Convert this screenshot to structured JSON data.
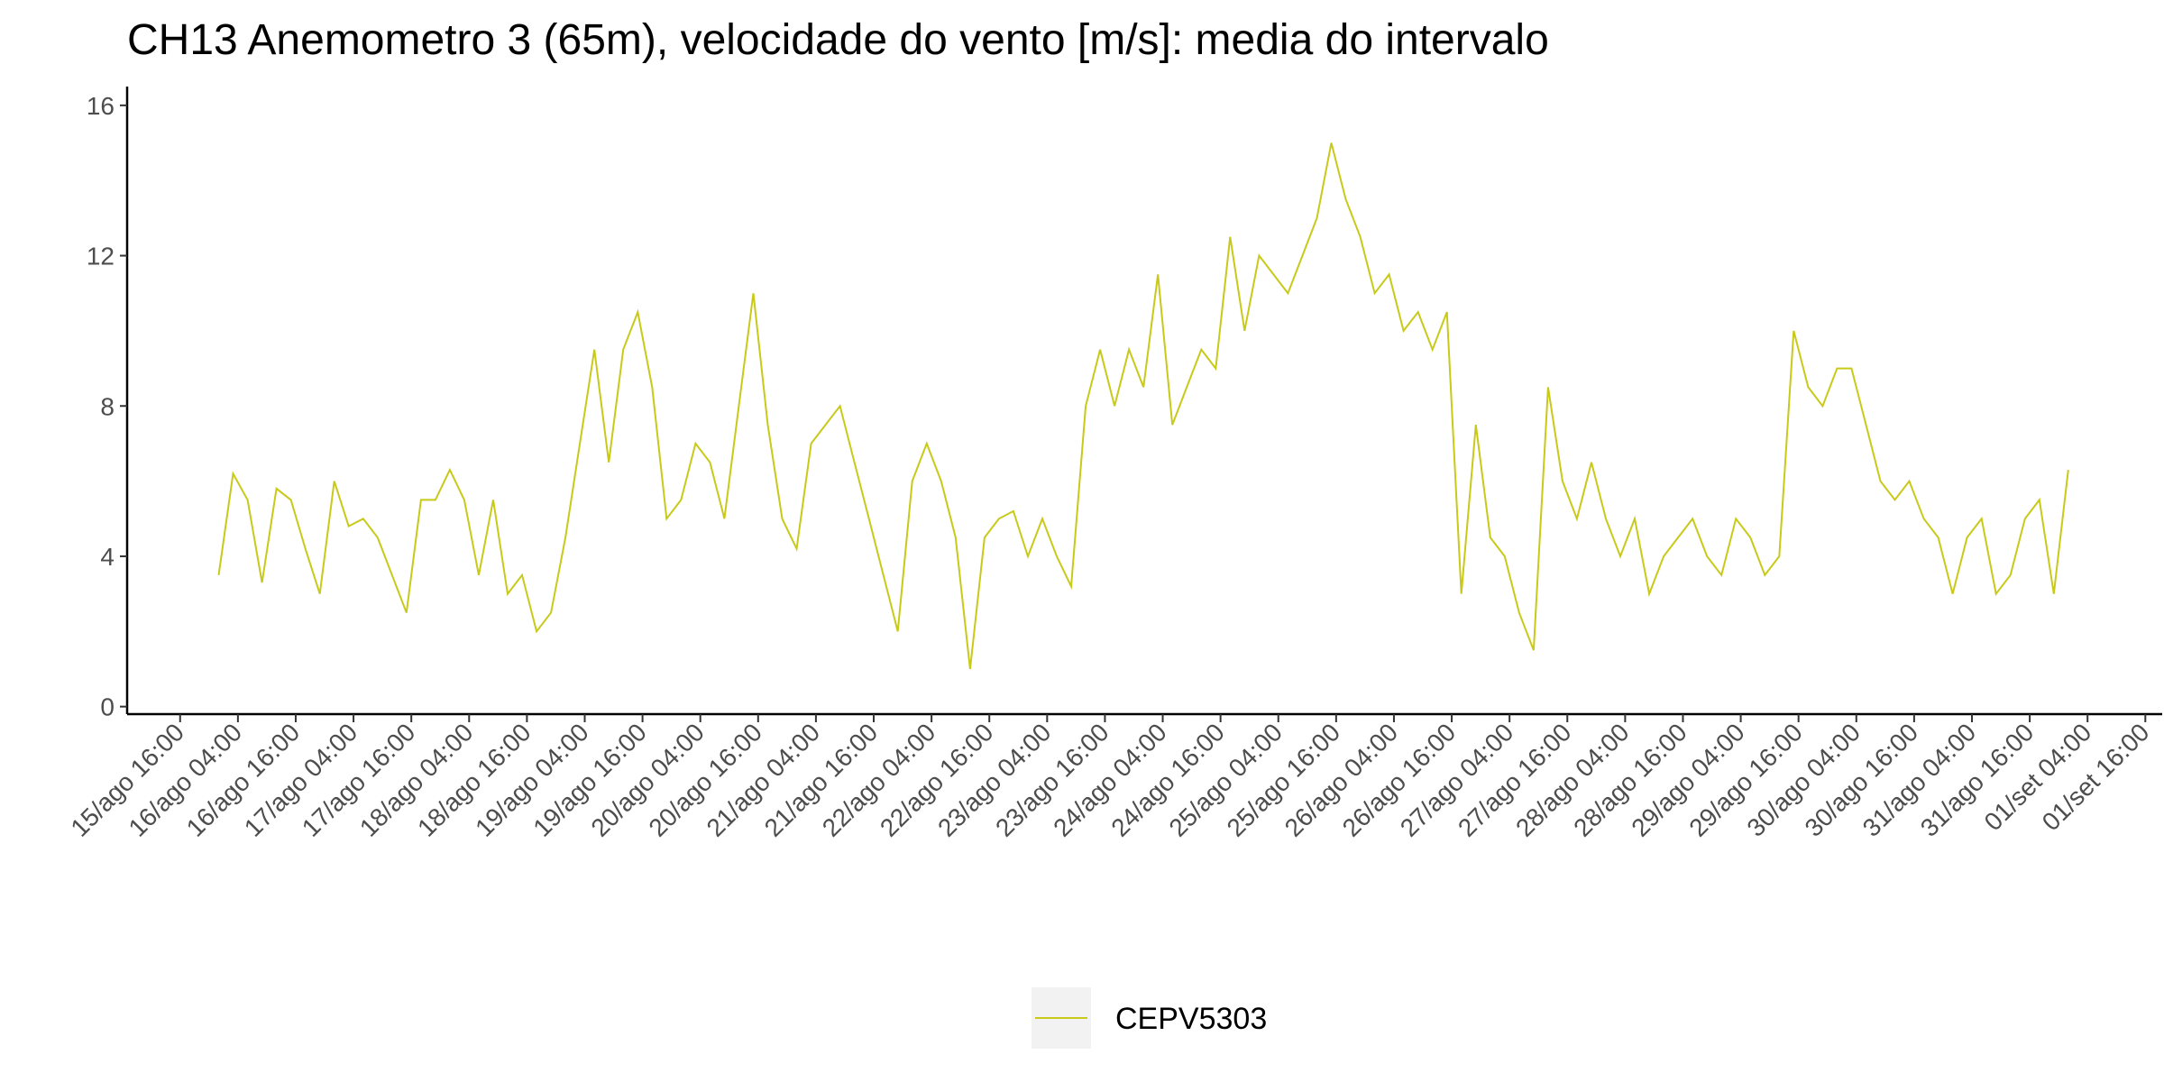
{
  "chart_data": {
    "type": "line",
    "title": "CH13 Anemometro 3 (65m), velocidade do vento [m/s]: media do intervalo",
    "x": [
      "16/ago 00:00",
      "16/ago 03:00",
      "16/ago 06:00",
      "16/ago 09:00",
      "16/ago 12:00",
      "16/ago 15:00",
      "16/ago 18:00",
      "16/ago 21:00",
      "17/ago 00:00",
      "17/ago 03:00",
      "17/ago 06:00",
      "17/ago 09:00",
      "17/ago 12:00",
      "17/ago 15:00",
      "17/ago 18:00",
      "17/ago 21:00",
      "18/ago 00:00",
      "18/ago 03:00",
      "18/ago 06:00",
      "18/ago 09:00",
      "18/ago 12:00",
      "18/ago 15:00",
      "18/ago 18:00",
      "18/ago 21:00",
      "19/ago 00:00",
      "19/ago 03:00",
      "19/ago 06:00",
      "19/ago 09:00",
      "19/ago 12:00",
      "19/ago 15:00",
      "19/ago 18:00",
      "19/ago 21:00",
      "20/ago 00:00",
      "20/ago 03:00",
      "20/ago 06:00",
      "20/ago 09:00",
      "20/ago 12:00",
      "20/ago 15:00",
      "20/ago 18:00",
      "20/ago 21:00",
      "21/ago 00:00",
      "21/ago 03:00",
      "21/ago 06:00",
      "21/ago 09:00",
      "21/ago 12:00",
      "21/ago 15:00",
      "21/ago 18:00",
      "21/ago 21:00",
      "22/ago 00:00",
      "22/ago 03:00",
      "22/ago 06:00",
      "22/ago 09:00",
      "22/ago 12:00",
      "22/ago 15:00",
      "22/ago 18:00",
      "22/ago 21:00",
      "23/ago 00:00",
      "23/ago 03:00",
      "23/ago 06:00",
      "23/ago 09:00",
      "23/ago 12:00",
      "23/ago 15:00",
      "23/ago 18:00",
      "23/ago 21:00",
      "24/ago 00:00",
      "24/ago 03:00",
      "24/ago 06:00",
      "24/ago 09:00",
      "24/ago 12:00",
      "24/ago 15:00",
      "24/ago 18:00",
      "24/ago 21:00",
      "25/ago 00:00",
      "25/ago 03:00",
      "25/ago 06:00",
      "25/ago 09:00",
      "25/ago 12:00",
      "25/ago 15:00",
      "25/ago 18:00",
      "25/ago 21:00",
      "26/ago 00:00",
      "26/ago 03:00",
      "26/ago 06:00",
      "26/ago 09:00",
      "26/ago 12:00",
      "26/ago 15:00",
      "26/ago 18:00",
      "26/ago 21:00",
      "27/ago 00:00",
      "27/ago 03:00",
      "27/ago 06:00",
      "27/ago 09:00",
      "27/ago 12:00",
      "27/ago 15:00",
      "27/ago 18:00",
      "27/ago 21:00",
      "28/ago 00:00",
      "28/ago 03:00",
      "28/ago 06:00",
      "28/ago 09:00",
      "28/ago 12:00",
      "28/ago 15:00",
      "28/ago 18:00",
      "28/ago 21:00",
      "29/ago 00:00",
      "29/ago 03:00",
      "29/ago 06:00",
      "29/ago 09:00",
      "29/ago 12:00",
      "29/ago 15:00",
      "29/ago 18:00",
      "29/ago 21:00",
      "30/ago 00:00",
      "30/ago 03:00",
      "30/ago 06:00",
      "30/ago 09:00",
      "30/ago 12:00",
      "30/ago 15:00",
      "30/ago 18:00",
      "30/ago 21:00",
      "31/ago 00:00",
      "31/ago 03:00",
      "31/ago 06:00",
      "31/ago 09:00",
      "31/ago 12:00",
      "31/ago 15:00",
      "31/ago 18:00",
      "31/ago 21:00",
      "01/set 00:00"
    ],
    "series": [
      {
        "name": "CEPV5303",
        "color": "#c9c919",
        "values": [
          3.5,
          6.2,
          5.5,
          3.3,
          5.8,
          5.5,
          4.2,
          3.0,
          6.0,
          4.8,
          5.0,
          4.5,
          3.5,
          2.5,
          5.5,
          5.5,
          6.3,
          5.5,
          3.5,
          5.5,
          3.0,
          3.5,
          2.0,
          2.5,
          4.5,
          7.0,
          9.5,
          6.5,
          9.5,
          10.5,
          8.5,
          5.0,
          5.5,
          7.0,
          6.5,
          5.0,
          8.0,
          11.0,
          7.5,
          5.0,
          4.2,
          7.0,
          7.5,
          8.0,
          6.5,
          5.0,
          3.5,
          2.0,
          6.0,
          7.0,
          6.0,
          4.5,
          1.0,
          4.5,
          5.0,
          5.2,
          4.0,
          5.0,
          4.0,
          3.2,
          8.0,
          9.5,
          8.0,
          9.5,
          8.5,
          11.5,
          7.5,
          8.5,
          9.5,
          9.0,
          12.5,
          10.0,
          12.0,
          11.5,
          11.0,
          12.0,
          13.0,
          15.0,
          13.5,
          12.5,
          11.0,
          11.5,
          10.0,
          10.5,
          9.5,
          10.5,
          3.0,
          7.5,
          4.5,
          4.0,
          2.5,
          1.5,
          8.5,
          6.0,
          5.0,
          6.5,
          5.0,
          4.0,
          5.0,
          3.0,
          4.0,
          4.5,
          5.0,
          4.0,
          3.5,
          5.0,
          4.5,
          3.5,
          4.0,
          10.0,
          8.5,
          8.0,
          9.0,
          9.0,
          7.5,
          6.0,
          5.5,
          6.0,
          5.0,
          4.5,
          3.0,
          4.5,
          5.0,
          3.0,
          3.5,
          5.0,
          5.5,
          3.0,
          6.3
        ]
      }
    ],
    "xlim": [
      "15/ago 05:00",
      "01/set 19:30"
    ],
    "xticks": [
      "15/ago 16:00",
      "16/ago 04:00",
      "16/ago 16:00",
      "17/ago 04:00",
      "17/ago 16:00",
      "18/ago 04:00",
      "18/ago 16:00",
      "19/ago 04:00",
      "19/ago 16:00",
      "20/ago 04:00",
      "20/ago 16:00",
      "21/ago 04:00",
      "21/ago 16:00",
      "22/ago 04:00",
      "22/ago 16:00",
      "23/ago 04:00",
      "23/ago 16:00",
      "24/ago 04:00",
      "24/ago 16:00",
      "25/ago 04:00",
      "25/ago 16:00",
      "26/ago 04:00",
      "26/ago 16:00",
      "27/ago 04:00",
      "27/ago 16:00",
      "28/ago 04:00",
      "28/ago 16:00",
      "29/ago 04:00",
      "29/ago 16:00",
      "30/ago 04:00",
      "30/ago 16:00",
      "31/ago 04:00",
      "31/ago 16:00",
      "01/set 04:00",
      "01/set 16:00"
    ],
    "ylim": [
      -0.2,
      16.5
    ],
    "yticks": [
      0,
      4,
      8,
      12,
      16
    ],
    "grid": false,
    "legend": "bottom"
  }
}
